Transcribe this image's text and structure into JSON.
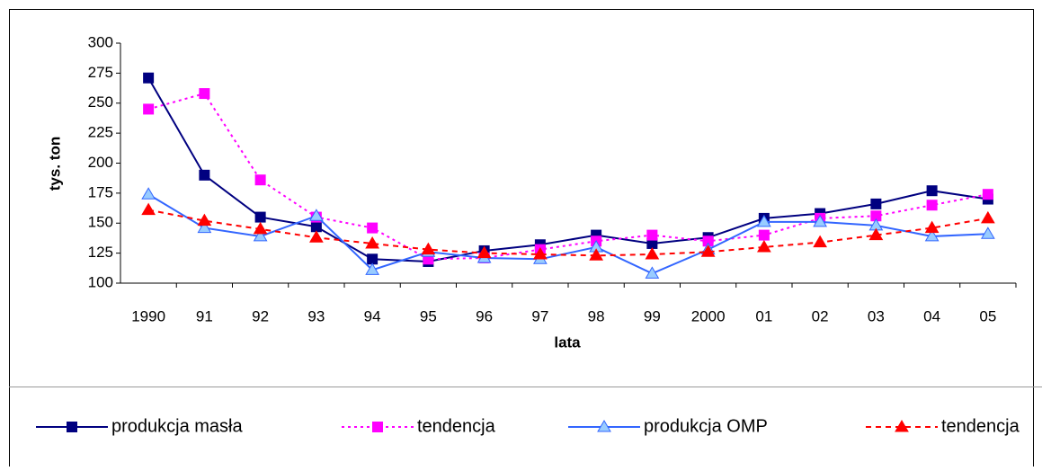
{
  "chart_data": {
    "type": "line",
    "categories": [
      "1990",
      "91",
      "92",
      "93",
      "94",
      "95",
      "96",
      "97",
      "98",
      "99",
      "2000",
      "01",
      "02",
      "03",
      "04",
      "05"
    ],
    "x_label": "lata",
    "y_label": "tys. ton",
    "ylim": [
      100,
      300
    ],
    "yticks": [
      100,
      125,
      150,
      175,
      200,
      225,
      250,
      275,
      300
    ],
    "legend": "bottom",
    "series": [
      {
        "name": "produkcja masła",
        "color": "#000080",
        "marker_fill": "#000080",
        "line_style": "solid",
        "marker": "square",
        "values": [
          271,
          190,
          155,
          147,
          120,
          118,
          127,
          132,
          140,
          133,
          138,
          154,
          158,
          166,
          177,
          170
        ]
      },
      {
        "name": "tendencja",
        "color": "#ff00ff",
        "marker_fill": "#ff00ff",
        "line_style": "dotted",
        "marker": "square",
        "values": [
          245,
          258,
          186,
          155,
          146,
          120,
          121,
          128,
          135,
          140,
          135,
          140,
          154,
          156,
          165,
          174
        ]
      },
      {
        "name": "produkcja OMP",
        "color": "#3366ff",
        "marker_fill": "#99ccff",
        "line_style": "solid",
        "marker": "triangle",
        "values": [
          174,
          146,
          139,
          156,
          111,
          126,
          121,
          120,
          130,
          108,
          128,
          151,
          151,
          148,
          139,
          141
        ]
      },
      {
        "name": "tendencja",
        "color": "#ff0000",
        "marker_fill": "#ff0000",
        "line_style": "dashed",
        "marker": "triangle",
        "values": [
          161,
          152,
          145,
          138,
          133,
          128,
          125,
          124,
          123,
          124,
          126,
          130,
          134,
          140,
          146,
          154
        ]
      }
    ]
  }
}
